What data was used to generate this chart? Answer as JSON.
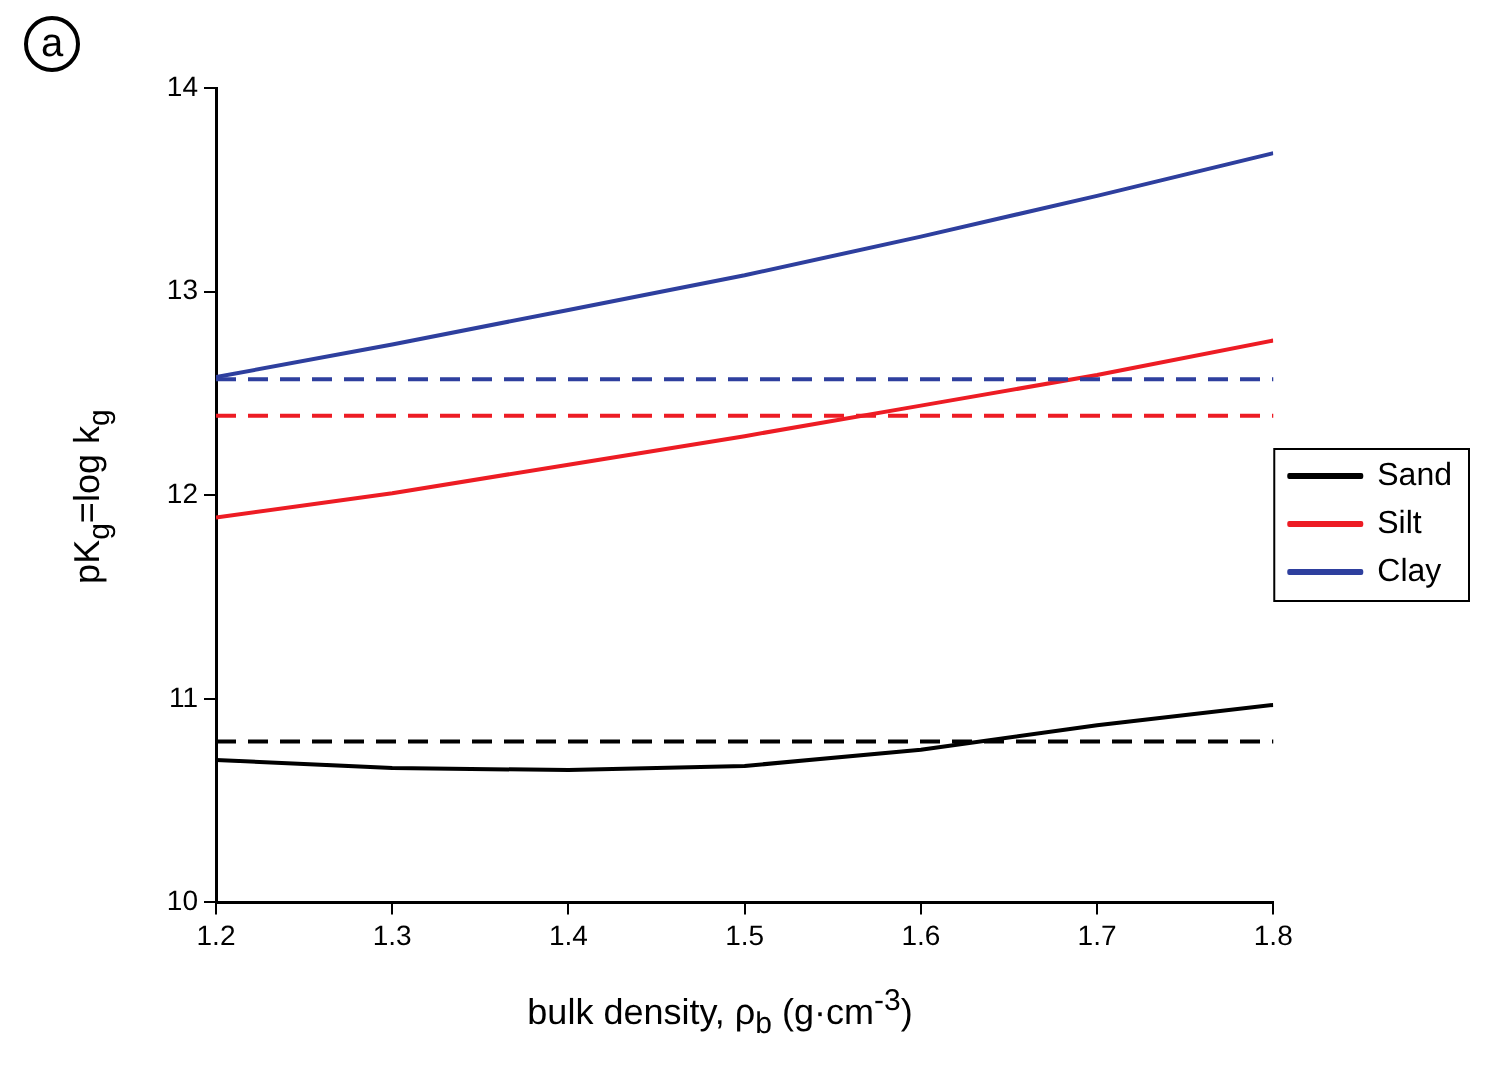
{
  "chart_data": {
    "type": "line",
    "xlabel": "bulk density, ρ$_{b}$ (g·cm$^{-3}$)",
    "ylabel": "pK$_{g}$=log k$_{g}$",
    "annotations": [
      "a"
    ],
    "x": [
      1.2,
      1.3,
      1.4,
      1.5,
      1.6,
      1.7,
      1.8
    ],
    "series": [
      {
        "name": "Sand",
        "color": "#000000",
        "values": [
          10.7,
          10.66,
          10.65,
          10.67,
          10.75,
          10.87,
          10.97
        ]
      },
      {
        "name": "Silt",
        "color": "#ed1c24",
        "values": [
          11.89,
          12.01,
          12.15,
          12.29,
          12.44,
          12.59,
          12.76
        ]
      },
      {
        "name": "Clay",
        "color": "#2e3f9e",
        "values": [
          12.58,
          12.74,
          12.91,
          13.08,
          13.27,
          13.47,
          13.68
        ]
      }
    ],
    "ref_lines": [
      {
        "axis": "y",
        "value": 12.57,
        "color": "#2e3f9e",
        "line_style": "dashed"
      },
      {
        "axis": "y",
        "value": 12.39,
        "color": "#ed1c24",
        "line_style": "dashed"
      },
      {
        "axis": "y",
        "value": 10.79,
        "color": "#000000",
        "line_style": "dashed"
      }
    ],
    "xlim": [
      1.2,
      1.8
    ],
    "xticks": [
      1.2,
      1.3,
      1.4,
      1.5,
      1.6,
      1.7,
      1.8
    ],
    "ylim": [
      10,
      14
    ],
    "yticks": [
      10,
      11,
      12,
      13,
      14
    ],
    "grid": false,
    "legend": "right",
    "marker": "none",
    "line_style": "solid"
  }
}
